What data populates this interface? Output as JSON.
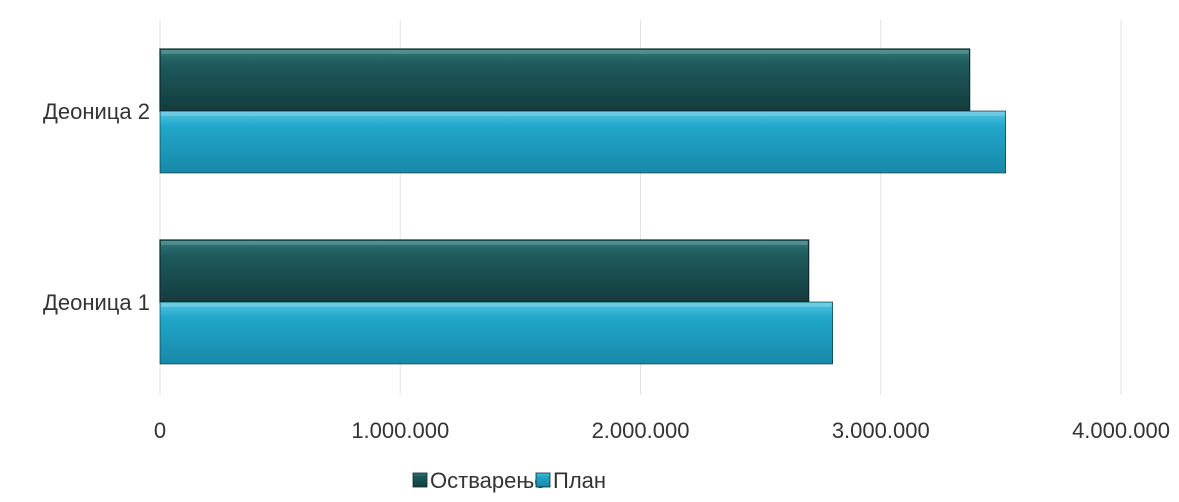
{
  "chart_data": {
    "type": "bar",
    "orientation": "horizontal",
    "categories": [
      "Деоница 1",
      "Деоница 2"
    ],
    "series": [
      {
        "name": "Остварење",
        "values": [
          2700000,
          3370000
        ],
        "color": "#1e5a5c"
      },
      {
        "name": "План",
        "values": [
          2800000,
          3520000
        ],
        "color": "#1fa3c6"
      }
    ],
    "x_ticks": [
      0,
      1000000,
      2000000,
      3000000,
      4000000
    ],
    "x_tick_labels": [
      "0",
      "1.000.000",
      "2.000.000",
      "3.000.000",
      "4.000.000"
    ],
    "xlim": [
      0,
      4000000
    ],
    "grid": "vertical",
    "legend_position": "bottom"
  }
}
